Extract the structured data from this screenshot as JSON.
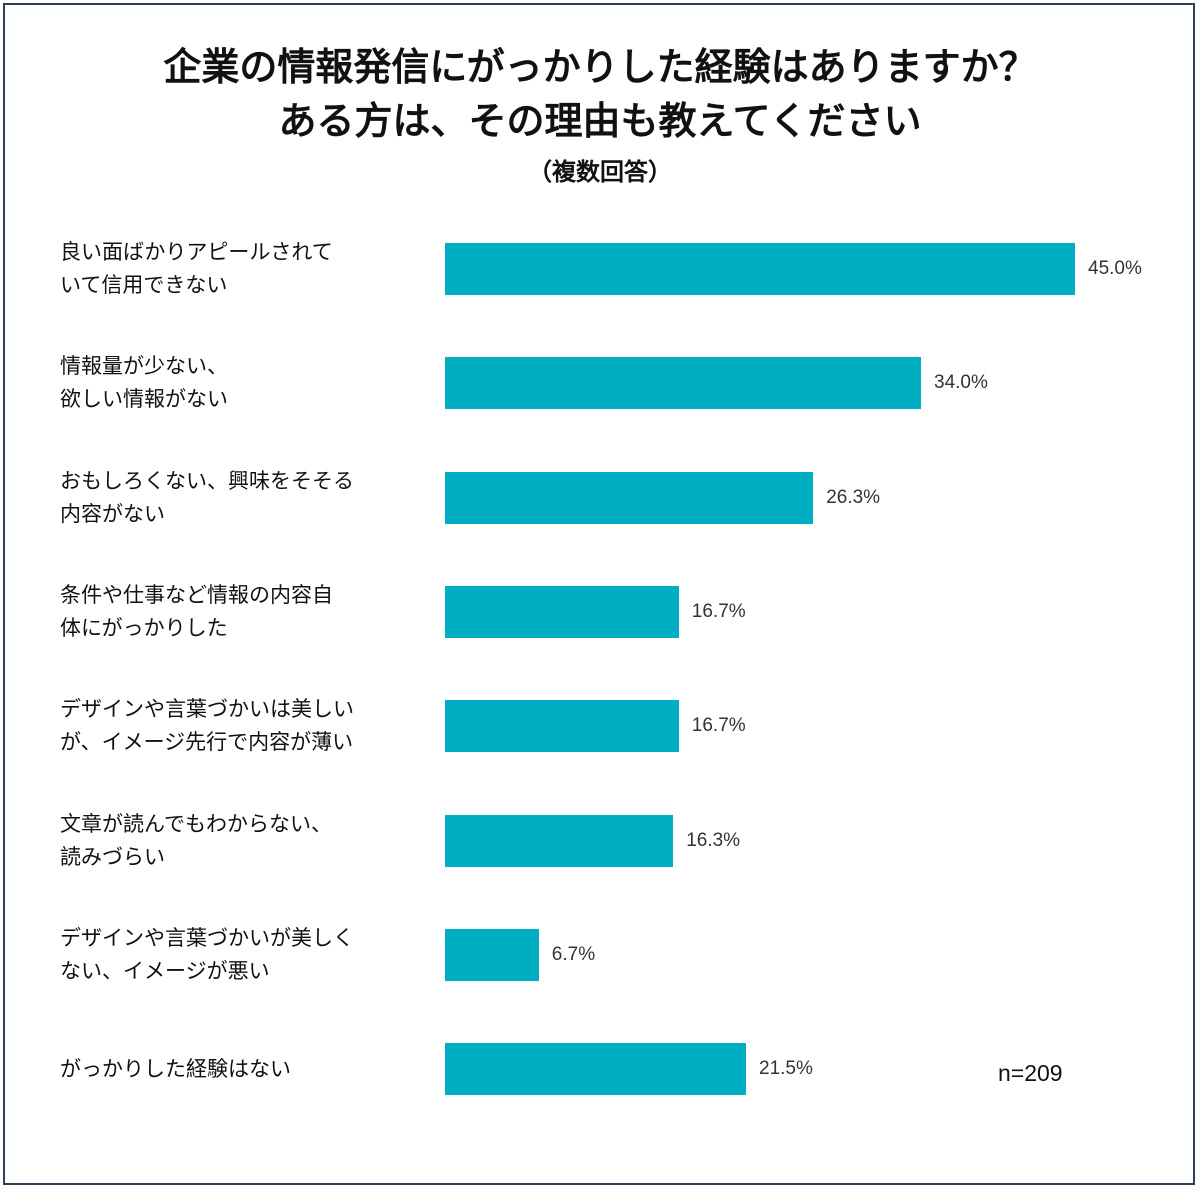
{
  "chart_data": {
    "type": "bar",
    "orientation": "horizontal",
    "title_lines": [
      "企業の情報発信にがっかりした経験はありますか？",
      "ある方は、その理由も教えてください"
    ],
    "subtitle": "（複数回答）",
    "categories": [
      "良い面ばかりアピールされて\nいて信用できない",
      "情報量が少ない、\n欲しい情報がない",
      "おもしろくない、興味をそそる\n内容がない",
      "条件や仕事など情報の内容自\n体にがっかりした",
      "デザインや言葉づかいは美しい\nが、イメージ先行で内容が薄い",
      "文章が読んでもわからない、\n読みづらい",
      "デザインや言葉づかいが美しく\nない、イメージが悪い",
      "がっかりした経験はない"
    ],
    "values": [
      45.0,
      34.0,
      26.3,
      16.7,
      16.7,
      16.3,
      6.7,
      21.5
    ],
    "value_labels": [
      "45.0%",
      "34.0%",
      "26.3%",
      "16.7%",
      "16.7%",
      "16.3%",
      "6.7%",
      "21.5%"
    ],
    "note": "n=209",
    "bar_color": "#00aec3",
    "border_color": "#2f3e5a",
    "grid": false,
    "legend": "none"
  }
}
